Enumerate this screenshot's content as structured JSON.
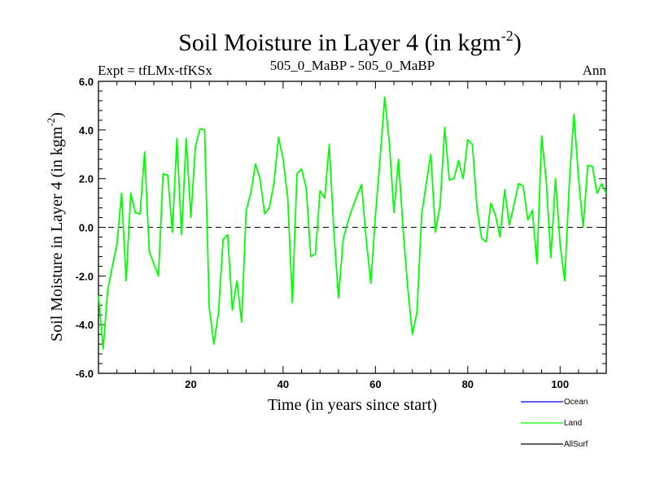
{
  "chart_data": {
    "type": "line",
    "title": "Soil Moisture in Layer 4 (in kgm",
    "title_sup": "-2",
    "title_close": ")",
    "subtitle_left": "Expt = tfLMx-tfKSx",
    "subtitle_center": "505_0_MaBP - 505_0_MaBP",
    "subtitle_right": "Ann",
    "xlabel": "Time (in years since start)",
    "ylabel": "Soil Moisture in Layer 4 (in kgm",
    "ylabel_sup": "-2",
    "ylabel_close": ")",
    "xlim": [
      0,
      110
    ],
    "ylim": [
      -6.0,
      6.0
    ],
    "xticks": [
      20,
      40,
      60,
      80,
      100
    ],
    "xtick_labels": [
      "20",
      "40",
      "60",
      "80",
      "100"
    ],
    "yticks": [
      -6,
      -4,
      -2,
      0,
      2,
      4,
      6
    ],
    "ytick_labels": [
      "-6.0",
      "-4.0",
      "-2.0",
      "0.0",
      "2.0",
      "4.0",
      "6.0"
    ],
    "zero_line": "dashed",
    "legend": [
      {
        "name": "Ocean",
        "color": "#0000ff"
      },
      {
        "name": "Land",
        "color": "#00ff00"
      },
      {
        "name": "AllSurf",
        "color": "#000000"
      }
    ],
    "series": [
      {
        "name": "Land",
        "color": "#00ff00",
        "x": [
          0,
          1,
          2,
          3,
          4,
          5,
          6,
          7,
          8,
          9,
          10,
          11,
          12,
          13,
          14,
          15,
          16,
          17,
          18,
          19,
          20,
          21,
          22,
          23,
          24,
          25,
          26,
          27,
          28,
          29,
          30,
          31,
          32,
          33,
          34,
          35,
          36,
          37,
          38,
          39,
          40,
          41,
          42,
          43,
          44,
          45,
          46,
          47,
          48,
          49,
          50,
          51,
          52,
          53,
          54,
          55,
          56,
          57,
          58,
          59,
          60,
          61,
          62,
          63,
          64,
          65,
          66,
          67,
          68,
          69,
          70,
          71,
          72,
          73,
          74,
          75,
          76,
          77,
          78,
          79,
          80,
          81,
          82,
          83,
          84,
          85,
          86,
          87,
          88,
          89,
          90,
          91,
          92,
          93,
          94,
          95,
          96,
          97,
          98,
          99,
          100,
          101,
          102,
          103,
          104,
          105,
          106,
          107,
          108,
          109,
          110
        ],
        "values": [
          -2.8,
          -5.0,
          -2.6,
          -1.6,
          -0.7,
          1.4,
          -2.2,
          1.4,
          0.6,
          0.55,
          3.1,
          -1.0,
          -1.5,
          -2.0,
          2.2,
          2.15,
          -0.2,
          3.65,
          -0.3,
          3.65,
          0.4,
          3.3,
          4.05,
          4.0,
          -3.3,
          -4.8,
          -3.5,
          -0.5,
          -0.3,
          -3.4,
          -2.2,
          -3.9,
          0.7,
          1.4,
          2.6,
          2.0,
          0.55,
          0.8,
          1.8,
          3.7,
          2.8,
          1.2,
          -3.1,
          2.2,
          2.4,
          1.6,
          -1.2,
          -1.1,
          1.5,
          1.2,
          3.4,
          -0.2,
          -2.9,
          -0.5,
          0.2,
          0.8,
          1.3,
          1.75,
          -0.5,
          -2.3,
          0.5,
          2.8,
          5.35,
          3.5,
          0.6,
          2.8,
          -0.1,
          -2.5,
          -4.4,
          -3.5,
          0.5,
          1.8,
          3.0,
          -0.2,
          0.9,
          4.1,
          1.95,
          2.0,
          2.75,
          2.0,
          3.6,
          3.4,
          0.8,
          -0.45,
          -0.6,
          1.0,
          0.5,
          -0.4,
          1.55,
          0.1,
          0.9,
          1.8,
          1.7,
          0.3,
          0.7,
          -1.5,
          3.75,
          1.9,
          -1.25,
          2.0,
          -0.7,
          -2.2,
          1.8,
          4.65,
          2.0,
          0.0,
          2.55,
          2.5,
          1.4,
          1.8,
          1.4
        ]
      }
    ]
  }
}
